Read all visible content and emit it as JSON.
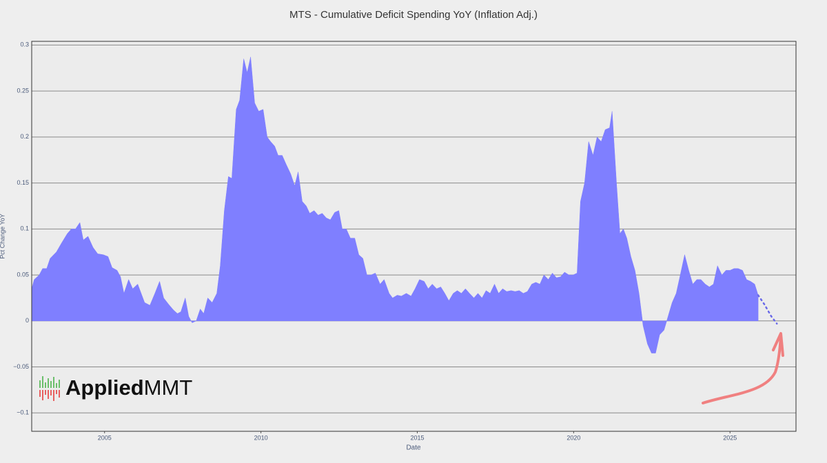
{
  "chart_data": {
    "type": "area",
    "title": "MTS - Cumulative Deficit Spending YoY (Inflation Adj.)",
    "xlabel": "Date",
    "ylabel": "Pct Change YoY",
    "logo_text": [
      "Applied",
      "MMT"
    ],
    "xlim": [
      2002.67,
      2027.11
    ],
    "xticks": [
      2005,
      2010,
      2015,
      2020,
      2025
    ],
    "ylim": [
      -0.12,
      0.304
    ],
    "yticks": [
      {
        "value": -0.1,
        "label": "−0.1"
      },
      {
        "value": -0.05,
        "label": "−0.05"
      },
      0,
      0.05,
      0.1,
      0.15,
      0.2,
      0.25,
      0.3
    ],
    "grid": true,
    "series": [
      {
        "color": "#7f7fff",
        "style": "area",
        "x": [
          2002.67,
          2002.75,
          2002.91,
          2003.02,
          2003.15,
          2003.26,
          2003.46,
          2003.63,
          2003.81,
          2003.94,
          2004.07,
          2004.21,
          2004.32,
          2004.47,
          2004.63,
          2004.78,
          2004.96,
          2005.11,
          2005.24,
          2005.4,
          2005.51,
          2005.62,
          2005.77,
          2005.9,
          2006.06,
          2006.17,
          2006.28,
          2006.45,
          2006.61,
          2006.76,
          2006.89,
          2007.05,
          2007.2,
          2007.33,
          2007.44,
          2007.58,
          2007.69,
          2007.8,
          2007.93,
          2008.06,
          2008.17,
          2008.3,
          2008.44,
          2008.59,
          2008.7,
          2008.83,
          2008.96,
          2009.07,
          2009.21,
          2009.32,
          2009.45,
          2009.56,
          2009.67,
          2009.8,
          2009.93,
          2010.07,
          2010.2,
          2010.31,
          2010.44,
          2010.55,
          2010.68,
          2010.81,
          2010.95,
          2011.08,
          2011.19,
          2011.32,
          2011.45,
          2011.56,
          2011.7,
          2011.83,
          2011.96,
          2012.09,
          2012.22,
          2012.36,
          2012.49,
          2012.6,
          2012.73,
          2012.86,
          2013.0,
          2013.13,
          2013.26,
          2013.39,
          2013.52,
          2013.66,
          2013.81,
          2013.94,
          2014.1,
          2014.21,
          2014.36,
          2014.49,
          2014.65,
          2014.8,
          2014.93,
          2015.07,
          2015.22,
          2015.35,
          2015.48,
          2015.62,
          2015.75,
          2015.88,
          2016.01,
          2016.15,
          2016.28,
          2016.41,
          2016.54,
          2016.67,
          2016.81,
          2016.94,
          2017.07,
          2017.2,
          2017.33,
          2017.47,
          2017.6,
          2017.73,
          2017.86,
          2018.0,
          2018.13,
          2018.26,
          2018.39,
          2018.52,
          2018.66,
          2018.79,
          2018.92,
          2019.05,
          2019.19,
          2019.32,
          2019.45,
          2019.58,
          2019.71,
          2019.85,
          2019.98,
          2020.11,
          2020.22,
          2020.35,
          2020.48,
          2020.62,
          2020.75,
          2020.88,
          2021.01,
          2021.15,
          2021.23,
          2021.37,
          2021.48,
          2021.59,
          2021.7,
          2021.83,
          2021.96,
          2022.09,
          2022.22,
          2022.36,
          2022.49,
          2022.62,
          2022.75,
          2022.89,
          2023.02,
          2023.15,
          2023.28,
          2023.41,
          2023.55,
          2023.68,
          2023.81,
          2023.94,
          2024.07,
          2024.21,
          2024.34,
          2024.47,
          2024.6,
          2024.74,
          2024.87,
          2025.0,
          2025.13,
          2025.26,
          2025.4,
          2025.53,
          2025.66,
          2025.79,
          2025.9
        ],
        "values": [
          0.035,
          0.045,
          0.05,
          0.057,
          0.057,
          0.068,
          0.075,
          0.085,
          0.095,
          0.1,
          0.1,
          0.107,
          0.088,
          0.092,
          0.08,
          0.073,
          0.072,
          0.07,
          0.058,
          0.055,
          0.048,
          0.03,
          0.045,
          0.035,
          0.04,
          0.03,
          0.02,
          0.017,
          0.03,
          0.043,
          0.025,
          0.018,
          0.012,
          0.008,
          0.01,
          0.025,
          0.005,
          -0.002,
          0.0,
          0.013,
          0.008,
          0.025,
          0.02,
          0.03,
          0.06,
          0.12,
          0.157,
          0.155,
          0.23,
          0.24,
          0.285,
          0.27,
          0.287,
          0.237,
          0.228,
          0.23,
          0.2,
          0.195,
          0.19,
          0.18,
          0.18,
          0.17,
          0.16,
          0.147,
          0.162,
          0.13,
          0.125,
          0.117,
          0.12,
          0.115,
          0.117,
          0.112,
          0.11,
          0.118,
          0.12,
          0.1,
          0.1,
          0.09,
          0.09,
          0.072,
          0.068,
          0.05,
          0.05,
          0.052,
          0.04,
          0.045,
          0.03,
          0.025,
          0.028,
          0.027,
          0.03,
          0.027,
          0.035,
          0.045,
          0.043,
          0.035,
          0.04,
          0.035,
          0.037,
          0.03,
          0.022,
          0.03,
          0.033,
          0.03,
          0.035,
          0.03,
          0.025,
          0.03,
          0.025,
          0.033,
          0.03,
          0.04,
          0.03,
          0.035,
          0.032,
          0.033,
          0.032,
          0.033,
          0.03,
          0.032,
          0.04,
          0.042,
          0.04,
          0.05,
          0.045,
          0.052,
          0.047,
          0.048,
          0.053,
          0.05,
          0.05,
          0.052,
          0.13,
          0.15,
          0.195,
          0.18,
          0.2,
          0.195,
          0.208,
          0.21,
          0.228,
          0.15,
          0.095,
          0.1,
          0.09,
          0.07,
          0.055,
          0.03,
          -0.005,
          -0.025,
          -0.035,
          -0.035,
          -0.015,
          -0.01,
          0.005,
          0.02,
          0.03,
          0.05,
          0.072,
          0.055,
          0.04,
          0.045,
          0.045,
          0.04,
          0.037,
          0.04,
          0.06,
          0.05,
          0.055,
          0.055,
          0.057,
          0.057,
          0.055,
          0.045,
          0.043,
          0.04,
          0.028
        ]
      },
      {
        "color": "#6a6ae8",
        "style": "dotted",
        "x": [
          2025.9,
          2026.1,
          2026.32,
          2026.5
        ],
        "values": [
          0.028,
          0.018,
          0.005,
          -0.003
        ]
      }
    ]
  }
}
